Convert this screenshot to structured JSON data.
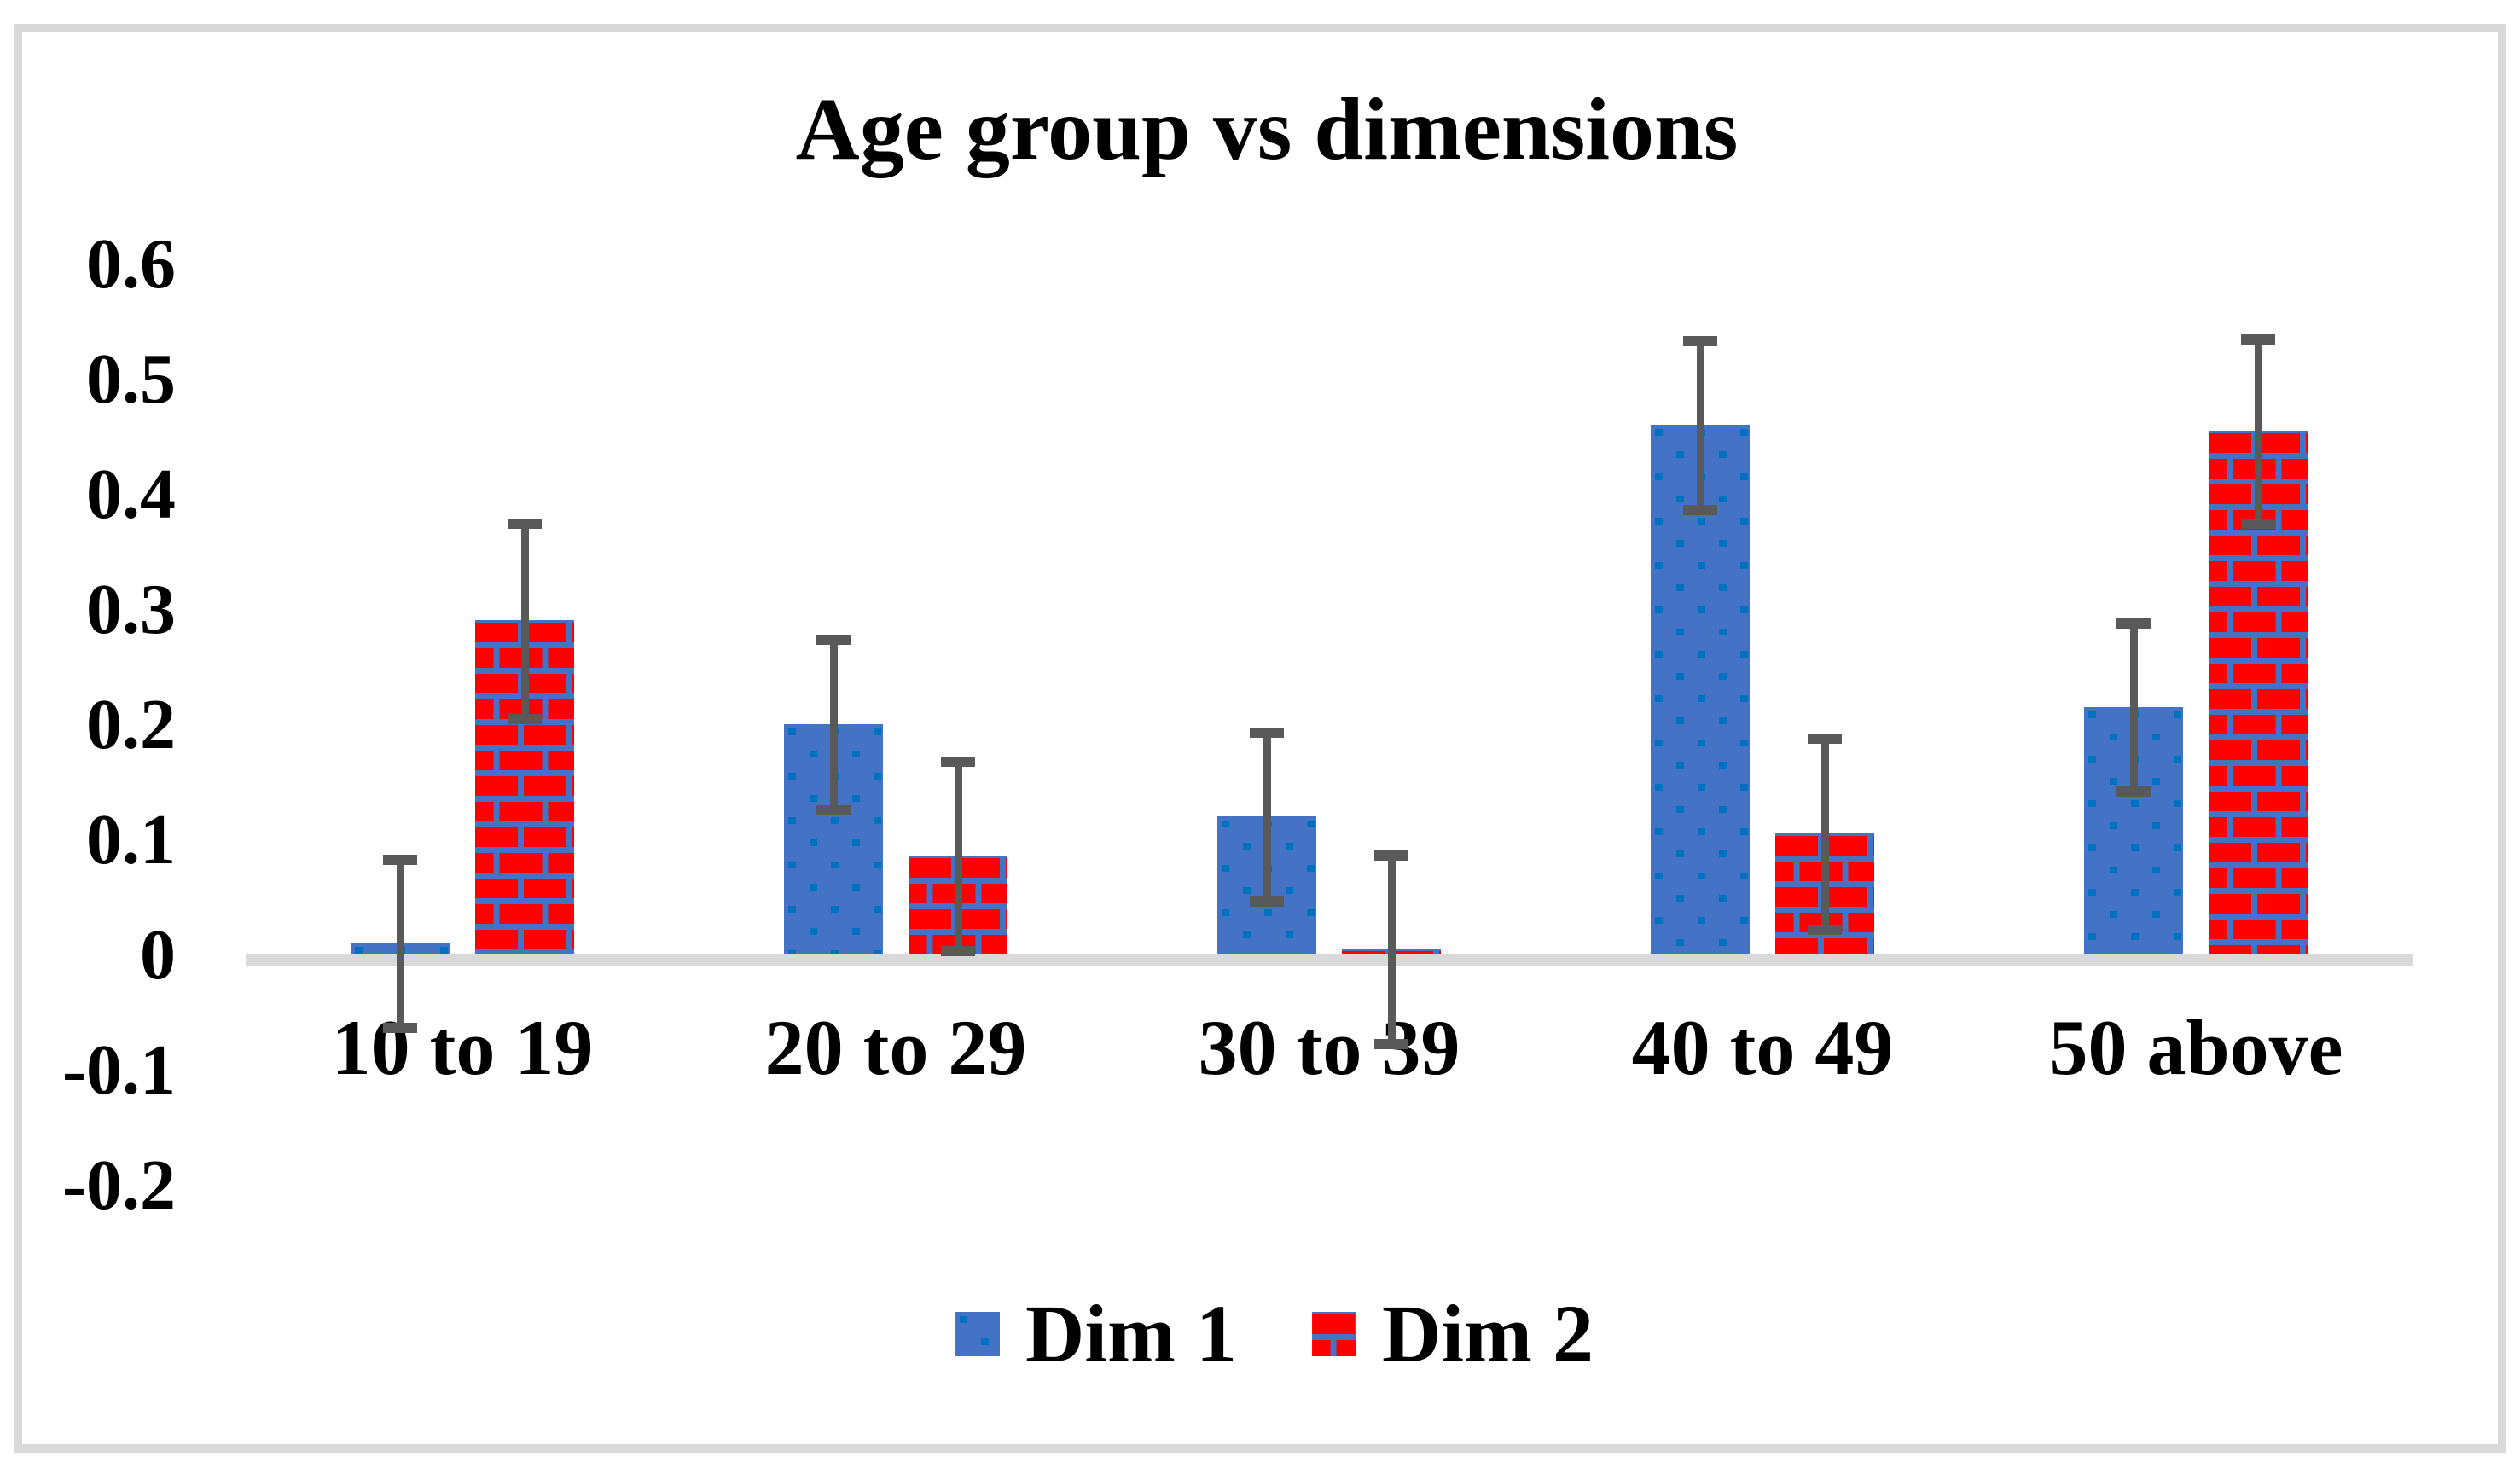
{
  "chart_data": {
    "type": "bar",
    "title": "Age group vs dimensions",
    "categories": [
      "10 to 19",
      "20 to 29",
      "30 to 39",
      "40 to 49",
      "50 above"
    ],
    "series": [
      {
        "name": "Dim 1",
        "pattern": "dots",
        "fill": "#4472C4",
        "pattern_color": "#0070C0",
        "values": [
          0.01,
          0.2,
          0.12,
          0.46,
          0.215
        ],
        "errors": [
          0.073,
          0.074,
          0.073,
          0.073,
          0.073
        ]
      },
      {
        "name": "Dim 2",
        "pattern": "brick",
        "fill": "#FF0000",
        "pattern_color": "#4472C4",
        "values": [
          0.29,
          0.086,
          0.005,
          0.105,
          0.455
        ],
        "errors": [
          0.085,
          0.082,
          0.082,
          0.083,
          0.08
        ]
      }
    ],
    "y_axis": {
      "range": [
        -0.2,
        0.6
      ],
      "ticks": [
        {
          "value": 0.6,
          "label": "0.6"
        },
        {
          "value": 0.5,
          "label": "0.5"
        },
        {
          "value": 0.4,
          "label": "0.4"
        },
        {
          "value": 0.3,
          "label": "0.3"
        },
        {
          "value": 0.2,
          "label": "0.2"
        },
        {
          "value": 0.1,
          "label": "0.1"
        },
        {
          "value": 0,
          "label": "0"
        },
        {
          "value": -0.1,
          "label": "-0.1"
        },
        {
          "value": -0.2,
          "label": "-0.2"
        }
      ]
    },
    "grid": false,
    "legend_position": "bottom",
    "error_bars": true,
    "colors": {
      "error_bar": "#595959",
      "axis_line": "#D9D9D9",
      "frame_border": "#D9D9D9",
      "background": "#FFFFFF",
      "text": "#000000"
    }
  }
}
